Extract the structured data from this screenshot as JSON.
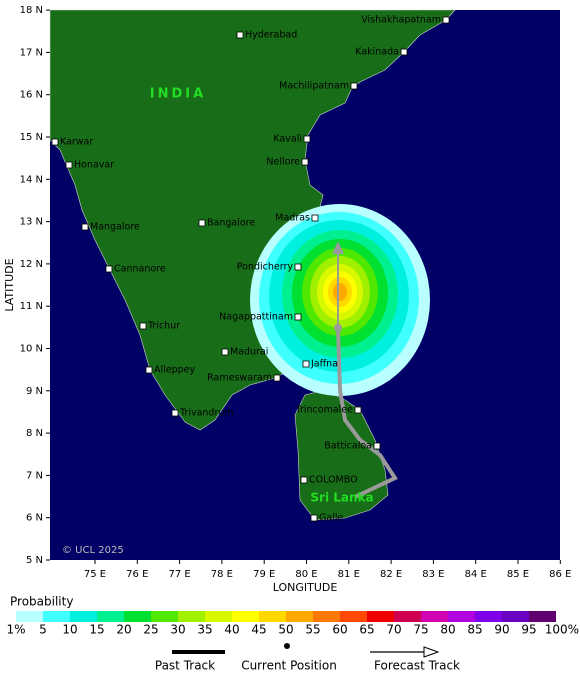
{
  "map": {
    "region_labels": [
      "INDIA",
      "Sri Lanka"
    ],
    "cities": [
      "Vishakhapatnam",
      "Hyderabad",
      "Kakinada",
      "Machilipatnam",
      "Kavali",
      "Karwar",
      "Nellore",
      "Honavar",
      "Madras",
      "Bangalore",
      "Mangalore",
      "Pondicherry",
      "Cannanore",
      "Nagappattinam",
      "Trichur",
      "Madurai",
      "Jaffna",
      "Alleppey",
      "Rameswaram",
      "Trivandrum",
      "Trincomalee",
      "Batticaloa",
      "COLOMBO",
      "Galle"
    ],
    "lat_ticks": [
      "5 N",
      "6 N",
      "7 N",
      "8 N",
      "9 N",
      "10 N",
      "11 N",
      "12 N",
      "13 N",
      "14 N",
      "15 N",
      "16 N",
      "17 N",
      "18 N"
    ],
    "lon_ticks": [
      "75 E",
      "76 E",
      "77 E",
      "78 E",
      "79 E",
      "80 E",
      "81 E",
      "82 E",
      "83 E",
      "84 E",
      "85 E",
      "86 E"
    ],
    "x_axis_label": "LONGITUDE",
    "y_axis_label": "LATITUDE",
    "copyright": "© UCL 2025"
  },
  "probability_legend": {
    "title": "Probability",
    "labels": [
      "1%",
      "5",
      "10",
      "15",
      "20",
      "25",
      "30",
      "35",
      "40",
      "45",
      "50",
      "55",
      "60",
      "65",
      "70",
      "75",
      "80",
      "85",
      "90",
      "95",
      "100%"
    ],
    "colors": [
      "#b8ffff",
      "#40ffff",
      "#00f0e0",
      "#00f090",
      "#00e030",
      "#50e800",
      "#a0f000",
      "#d8f800",
      "#ffff00",
      "#ffd800",
      "#ffa800",
      "#ff7800",
      "#ff4800",
      "#f00000",
      "#d00050",
      "#d000b0",
      "#b000e0",
      "#8000e8",
      "#6a00c0",
      "#600070"
    ]
  },
  "track_legend": {
    "past": "Past Track",
    "current": "Current Position",
    "forecast": "Forecast Track"
  }
}
